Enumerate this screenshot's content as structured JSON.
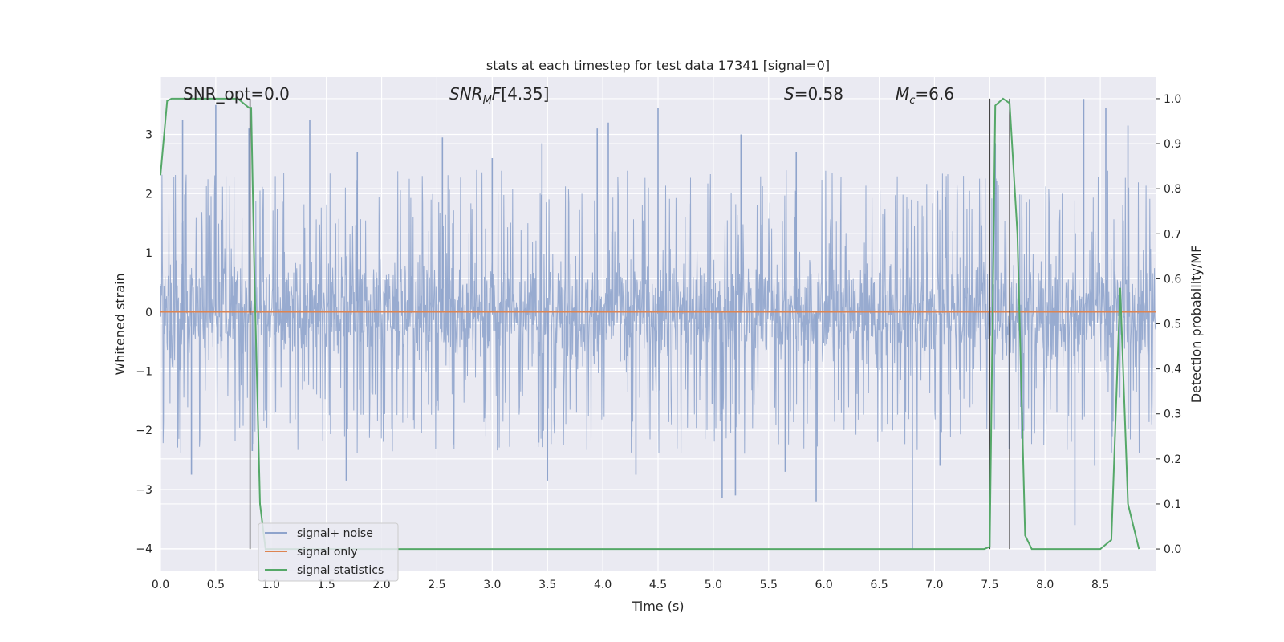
{
  "chart_data": {
    "type": "line",
    "title": "stats at each timestep for test data 17341 [signal=0]",
    "xlabel": "Time (s)",
    "ylabel_left": "Whitened strain",
    "ylabel_right": "Detection probability/MF",
    "xlim": [
      0.0,
      9.0
    ],
    "ylim_left": [
      -4.37,
      3.97
    ],
    "ylim_right": [
      -0.048,
      1.048
    ],
    "x_ticks": [
      "0.0",
      "0.5",
      "1.0",
      "1.5",
      "2.0",
      "2.5",
      "3.0",
      "3.5",
      "4.0",
      "4.5",
      "5.0",
      "5.5",
      "6.0",
      "6.5",
      "7.0",
      "7.5",
      "8.0",
      "8.5"
    ],
    "y_left_ticks": [
      "3",
      "2",
      "1",
      "0",
      "−1",
      "−2",
      "−3",
      "−4"
    ],
    "y_right_ticks": [
      "1.0",
      "0.9",
      "0.8",
      "0.7",
      "0.6",
      "0.5",
      "0.4",
      "0.3",
      "0.2",
      "0.1",
      "0.0"
    ],
    "grid": true,
    "legend_position": "lower-left",
    "annotations": {
      "snr_opt": "SNR_opt=0.0",
      "snr_mf": "[4.35]",
      "s_value": "=0.58",
      "mc_value": "=6.6"
    },
    "series": [
      {
        "name": "signal+ noise",
        "color": "#8fa4cc",
        "style": "dense noise, roughly ±1.3 core with spikes to about +3.6 and −4",
        "envelope_upper": 1.3,
        "envelope_lower": -1.3,
        "spikes": [
          [
            0.2,
            3.25
          ],
          [
            0.5,
            3.5
          ],
          [
            0.8,
            3.1
          ],
          [
            1.35,
            3.25
          ],
          [
            1.78,
            2.7
          ],
          [
            2.55,
            2.95
          ],
          [
            3.0,
            2.6
          ],
          [
            3.45,
            2.85
          ],
          [
            3.95,
            3.1
          ],
          [
            4.05,
            3.2
          ],
          [
            4.5,
            3.45
          ],
          [
            5.25,
            3.0
          ],
          [
            5.75,
            2.7
          ],
          [
            7.55,
            2.85
          ],
          [
            8.35,
            3.6
          ],
          [
            8.55,
            3.45
          ],
          [
            8.75,
            3.15
          ],
          [
            0.28,
            -2.75
          ],
          [
            0.83,
            -2.35
          ],
          [
            1.68,
            -2.85
          ],
          [
            3.5,
            -2.85
          ],
          [
            4.3,
            -2.75
          ],
          [
            5.08,
            -3.15
          ],
          [
            5.2,
            -3.1
          ],
          [
            5.65,
            -2.7
          ],
          [
            5.93,
            -3.2
          ],
          [
            6.8,
            -4.0
          ],
          [
            7.05,
            -2.6
          ],
          [
            8.27,
            -3.6
          ],
          [
            8.45,
            -2.6
          ]
        ]
      },
      {
        "name": "signal only",
        "color": "#dd8452",
        "x": [
          0.0,
          9.0
        ],
        "y": [
          0.0,
          0.0
        ]
      },
      {
        "name": "signal statistics",
        "color": "#55a868",
        "axis": "right",
        "x": [
          0.0,
          0.06,
          0.1,
          0.15,
          0.3,
          0.5,
          0.7,
          0.8,
          0.82,
          0.85,
          0.9,
          0.95,
          7.45,
          7.5,
          7.55,
          7.62,
          7.68,
          7.75,
          7.82,
          7.88,
          8.5,
          8.6,
          8.68,
          8.75,
          8.85
        ],
        "y": [
          0.83,
          0.995,
          1.0,
          1.0,
          1.0,
          1.0,
          1.0,
          0.98,
          0.98,
          0.6,
          0.1,
          0.0,
          0.0,
          0.005,
          0.985,
          1.0,
          0.99,
          0.7,
          0.03,
          0.0,
          0.0,
          0.02,
          0.58,
          0.1,
          0.0
        ]
      }
    ],
    "vertical_markers": [
      0.81,
      7.5,
      7.68
    ]
  }
}
